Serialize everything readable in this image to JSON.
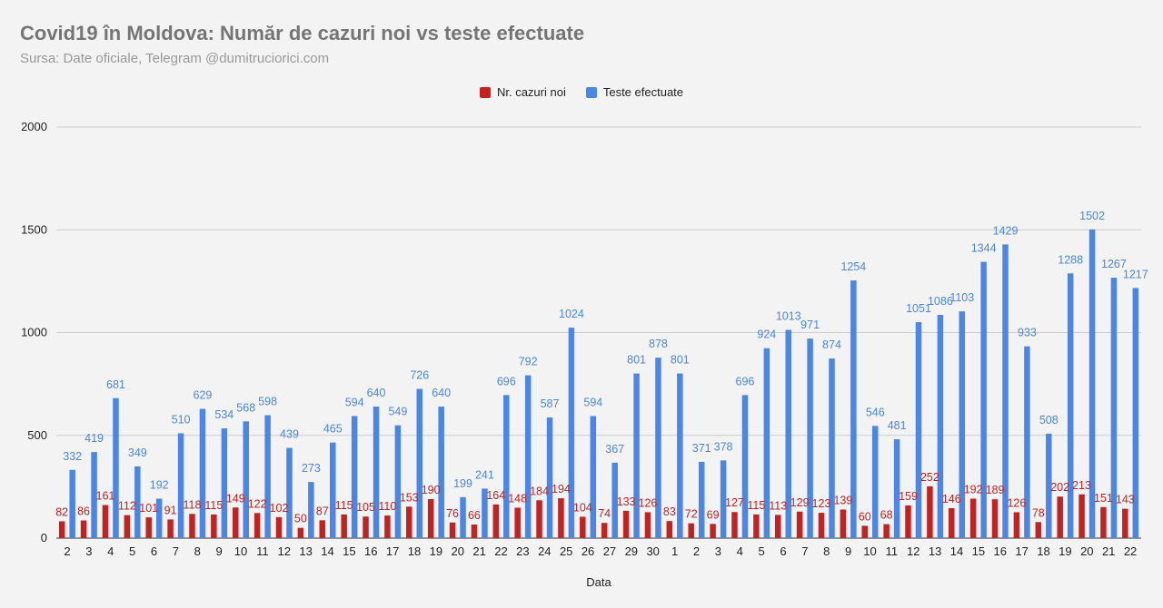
{
  "chart_data": {
    "type": "bar",
    "title": "Covid19 în Moldova: Număr de cazuri noi vs teste efectuate",
    "subtitle": "Sursa: Date oficiale, Telegram @dumitruciorici.com",
    "xlabel": "Data",
    "ylabel": "",
    "ylim": [
      0,
      2000
    ],
    "yticks": [
      "0",
      "500",
      "1000",
      "1500",
      "2000"
    ],
    "grid": true,
    "legend_position": "top-center",
    "categories": [
      "2",
      "3",
      "4",
      "5",
      "6",
      "7",
      "8",
      "9",
      "10",
      "11",
      "12",
      "13",
      "14",
      "15",
      "16",
      "17",
      "18",
      "19",
      "20",
      "21",
      "22",
      "23",
      "24",
      "25",
      "26",
      "27",
      "29",
      "30",
      "1",
      "2",
      "3",
      "4",
      "5",
      "6",
      "7",
      "8",
      "9",
      "10",
      "11",
      "12",
      "13",
      "14",
      "15",
      "16",
      "17",
      "18",
      "19",
      "20",
      "21",
      "22"
    ],
    "series": [
      {
        "name": "Nr. cazuri noi",
        "color": "#c5221f",
        "values": [
          82,
          86,
          161,
          112,
          101,
          91,
          118,
          115,
          149,
          122,
          102,
          50,
          87,
          115,
          105,
          110,
          153,
          190,
          76,
          66,
          164,
          148,
          184,
          194,
          104,
          74,
          133,
          126,
          83,
          72,
          69,
          127,
          115,
          113,
          129,
          123,
          139,
          60,
          68,
          159,
          252,
          146,
          192,
          189,
          126,
          78,
          202,
          213,
          151,
          143
        ]
      },
      {
        "name": "Teste efectuate",
        "color": "#4a86e8",
        "values": [
          332,
          419,
          681,
          349,
          192,
          510,
          629,
          534,
          568,
          598,
          439,
          273,
          465,
          594,
          640,
          549,
          726,
          640,
          199,
          241,
          696,
          792,
          587,
          1024,
          594,
          367,
          801,
          878,
          801,
          371,
          378,
          696,
          924,
          1013,
          971,
          874,
          1254,
          546,
          481,
          1051,
          1086,
          1103,
          1344,
          1429,
          933,
          508,
          1288,
          1502,
          1267,
          1217
        ]
      }
    ]
  }
}
